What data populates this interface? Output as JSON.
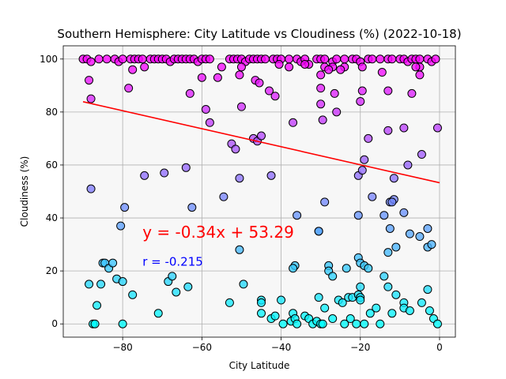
{
  "chart_data": {
    "type": "scatter",
    "title": "Southern Hemisphere: City Latitude vs Cloudiness (%) (2022-10-18)",
    "xlabel": "City Latitude",
    "ylabel": "Cloudiness (%)",
    "xlim": [
      -95,
      4
    ],
    "ylim": [
      -5,
      105
    ],
    "x_ticks": [
      -80,
      -60,
      -40,
      -20,
      0
    ],
    "y_ticks": [
      0,
      20,
      40,
      60,
      80,
      100
    ],
    "grid": true,
    "background": "#f7f7f7",
    "colormap": "cool",
    "regression": {
      "slope": -0.34,
      "intercept": 53.29,
      "x_range": [
        -90,
        0
      ],
      "color": "#ff0000",
      "equation_label": "y = -0.34x + 53.29",
      "r_label": "r = -0.215",
      "equation_color": "#ff0000",
      "r_color": "#0000ff"
    },
    "points": [
      [
        -90,
        100
      ],
      [
        -89,
        100
      ],
      [
        -88,
        99
      ],
      [
        -86,
        100
      ],
      [
        -84,
        100
      ],
      [
        -82,
        100
      ],
      [
        -81,
        99
      ],
      [
        -80,
        100
      ],
      [
        -78,
        100
      ],
      [
        -77,
        100
      ],
      [
        -76,
        100
      ],
      [
        -75,
        100
      ],
      [
        -73,
        100
      ],
      [
        -72,
        100
      ],
      [
        -71,
        100
      ],
      [
        -70,
        100
      ],
      [
        -69,
        100
      ],
      [
        -68,
        99
      ],
      [
        -67,
        100
      ],
      [
        -66,
        100
      ],
      [
        -65,
        100
      ],
      [
        -64,
        100
      ],
      [
        -63,
        100
      ],
      [
        -62,
        100
      ],
      [
        -61,
        99
      ],
      [
        -60,
        100
      ],
      [
        -59,
        100
      ],
      [
        -58,
        100
      ],
      [
        -53,
        100
      ],
      [
        -52,
        100
      ],
      [
        -51,
        100
      ],
      [
        -50,
        100
      ],
      [
        -49,
        99
      ],
      [
        -48,
        100
      ],
      [
        -47,
        100
      ],
      [
        -46,
        100
      ],
      [
        -45,
        100
      ],
      [
        -44,
        100
      ],
      [
        -42,
        100
      ],
      [
        -41,
        100
      ],
      [
        -40,
        100
      ],
      [
        -38,
        100
      ],
      [
        -36,
        100
      ],
      [
        -35,
        99
      ],
      [
        -34,
        100
      ],
      [
        -33,
        98
      ],
      [
        -31,
        100
      ],
      [
        -30,
        100
      ],
      [
        -29,
        100
      ],
      [
        -27,
        99
      ],
      [
        -26,
        100
      ],
      [
        -24,
        100
      ],
      [
        -22,
        100
      ],
      [
        -21,
        100
      ],
      [
        -20,
        99
      ],
      [
        -18,
        100
      ],
      [
        -17,
        100
      ],
      [
        -15,
        100
      ],
      [
        -13,
        100
      ],
      [
        -12,
        100
      ],
      [
        -10,
        100
      ],
      [
        -9,
        100
      ],
      [
        -8,
        99
      ],
      [
        -7,
        100
      ],
      [
        -6,
        100
      ],
      [
        -5,
        100
      ],
      [
        -3,
        100
      ],
      [
        -2,
        99
      ],
      [
        -1,
        100
      ],
      [
        -77.5,
        96
      ],
      [
        -74.5,
        97
      ],
      [
        -55,
        97
      ],
      [
        -50,
        97
      ],
      [
        -40.5,
        98
      ],
      [
        -38,
        97
      ],
      [
        -34,
        98
      ],
      [
        -29,
        97
      ],
      [
        -27,
        97
      ],
      [
        -24,
        97
      ],
      [
        -19.5,
        97
      ],
      [
        -14.5,
        95
      ],
      [
        -5,
        97
      ],
      [
        -6,
        97
      ],
      [
        -88.5,
        92
      ],
      [
        -78.5,
        89
      ],
      [
        -63,
        87
      ],
      [
        -60,
        93
      ],
      [
        -56,
        93
      ],
      [
        -50.5,
        94
      ],
      [
        -46.5,
        92
      ],
      [
        -45.5,
        91
      ],
      [
        -43,
        88
      ],
      [
        -41.5,
        86
      ],
      [
        -30,
        94
      ],
      [
        -30,
        89
      ],
      [
        -28,
        96
      ],
      [
        -26.5,
        87
      ],
      [
        -25,
        96
      ],
      [
        -20,
        84
      ],
      [
        -19.5,
        88
      ],
      [
        -13,
        88
      ],
      [
        -5,
        94
      ],
      [
        -7,
        87
      ],
      [
        -88,
        85
      ],
      [
        -59,
        81
      ],
      [
        -58,
        76
      ],
      [
        -50,
        82
      ],
      [
        -47,
        70
      ],
      [
        -46,
        69
      ],
      [
        -45,
        71
      ],
      [
        -37,
        76
      ],
      [
        -29.5,
        77
      ],
      [
        -26,
        80
      ],
      [
        -30,
        83
      ],
      [
        -18,
        70
      ],
      [
        -13,
        73
      ],
      [
        -9,
        74
      ],
      [
        -8,
        60
      ],
      [
        -4.5,
        64
      ],
      [
        -0.5,
        74
      ],
      [
        -74.5,
        56
      ],
      [
        -69.5,
        57
      ],
      [
        -64,
        59
      ],
      [
        -52.5,
        68
      ],
      [
        -51.5,
        66
      ],
      [
        -50.5,
        55
      ],
      [
        -42.5,
        56
      ],
      [
        -20.5,
        56
      ],
      [
        -19.5,
        58
      ],
      [
        -19,
        62
      ],
      [
        -17,
        48
      ],
      [
        -14,
        41
      ],
      [
        -12.5,
        46
      ],
      [
        -11.5,
        55
      ],
      [
        -11.5,
        47
      ],
      [
        -9,
        42
      ],
      [
        -7.5,
        34
      ],
      [
        -5,
        33
      ],
      [
        -3,
        29
      ],
      [
        -3,
        36
      ],
      [
        -2,
        30
      ],
      [
        -12,
        46
      ],
      [
        -88,
        51
      ],
      [
        -80.5,
        37
      ],
      [
        -79.5,
        44
      ],
      [
        -62.5,
        44
      ],
      [
        -54.5,
        48
      ],
      [
        -50.5,
        28
      ],
      [
        -36.5,
        22
      ],
      [
        -36,
        41
      ],
      [
        -37,
        21
      ],
      [
        -30.5,
        35
      ],
      [
        -30.5,
        35
      ],
      [
        -29,
        46
      ],
      [
        -28,
        22
      ],
      [
        -28,
        20
      ],
      [
        -27,
        18
      ],
      [
        -23.5,
        21
      ],
      [
        -20.5,
        25
      ],
      [
        -20.5,
        41
      ],
      [
        -20,
        23
      ],
      [
        -19,
        22
      ],
      [
        -18,
        21
      ],
      [
        -16,
        6
      ],
      [
        -14,
        18
      ],
      [
        -13,
        27
      ],
      [
        -12.5,
        36
      ],
      [
        -11,
        29
      ],
      [
        -88.5,
        15
      ],
      [
        -85.5,
        15
      ],
      [
        -85,
        23
      ],
      [
        -84.5,
        23
      ],
      [
        -83.5,
        21
      ],
      [
        -82.5,
        23
      ],
      [
        -81.5,
        17
      ],
      [
        -80,
        16
      ],
      [
        -77.5,
        11
      ],
      [
        -68.5,
        16
      ],
      [
        -67.5,
        18
      ],
      [
        -66.5,
        12
      ],
      [
        -63.5,
        14
      ],
      [
        -53,
        8
      ],
      [
        -49.5,
        15
      ],
      [
        -45,
        9
      ],
      [
        -45,
        8
      ],
      [
        -45,
        4
      ],
      [
        -42.5,
        2
      ],
      [
        -41.5,
        3
      ],
      [
        -40,
        9
      ],
      [
        -39.5,
        0
      ],
      [
        -37.5,
        1
      ],
      [
        -37,
        4
      ],
      [
        -36.5,
        2
      ],
      [
        -36,
        0
      ],
      [
        -34,
        3
      ],
      [
        -33,
        2
      ],
      [
        -32,
        0
      ],
      [
        -31,
        1
      ],
      [
        -30.5,
        10
      ],
      [
        -30,
        0
      ],
      [
        -29.5,
        0
      ],
      [
        -29,
        6
      ],
      [
        -27,
        2
      ],
      [
        -25.5,
        9
      ],
      [
        -24.5,
        8
      ],
      [
        -24,
        0
      ],
      [
        -23,
        10
      ],
      [
        -22.5,
        2
      ],
      [
        -22,
        10
      ],
      [
        -21,
        0
      ],
      [
        -20.5,
        11
      ],
      [
        -20,
        10
      ],
      [
        -20,
        14
      ],
      [
        -20,
        9
      ],
      [
        -19,
        0
      ],
      [
        -17.5,
        4
      ],
      [
        -15,
        0
      ],
      [
        -13,
        14
      ],
      [
        -12,
        4
      ],
      [
        -11,
        11
      ],
      [
        -9,
        8
      ],
      [
        -9,
        6
      ],
      [
        -7.5,
        5
      ],
      [
        -4.5,
        8
      ],
      [
        -3,
        13
      ],
      [
        -2.5,
        5
      ],
      [
        -1.5,
        2
      ],
      [
        -0.5,
        0
      ],
      [
        -87.5,
        0
      ],
      [
        -87,
        0
      ],
      [
        -86.5,
        7
      ],
      [
        -80,
        0
      ],
      [
        -71,
        4
      ]
    ]
  }
}
